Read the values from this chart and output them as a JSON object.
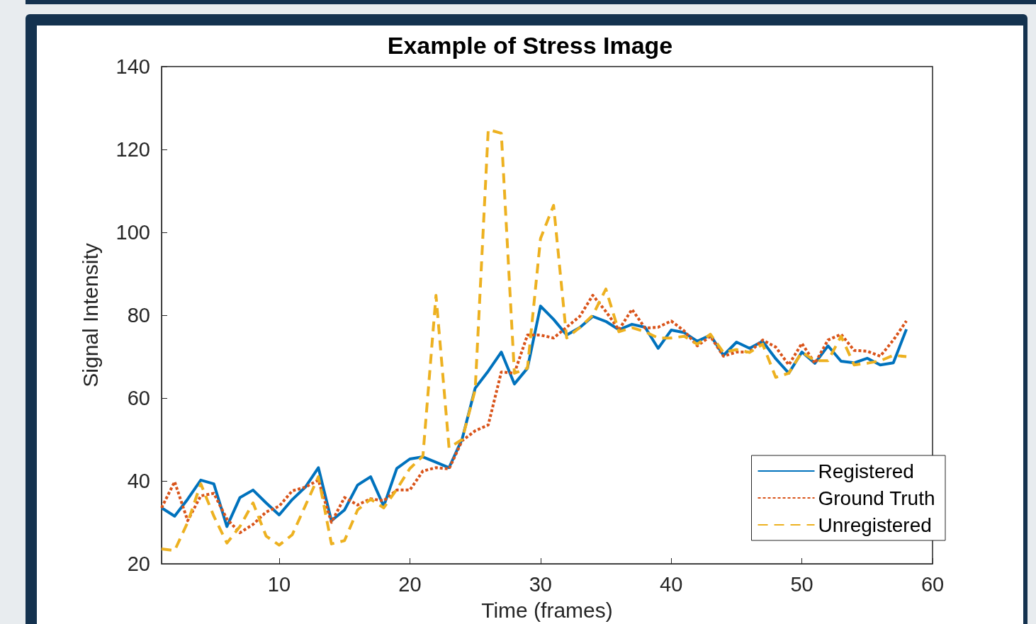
{
  "chart_data": {
    "type": "line",
    "title": "Example of Stress Image",
    "xlabel": "Time (frames)",
    "ylabel": "Signal Intensity",
    "x": [
      1,
      2,
      3,
      4,
      5,
      6,
      7,
      8,
      9,
      10,
      11,
      12,
      13,
      14,
      15,
      16,
      17,
      18,
      19,
      20,
      21,
      22,
      23,
      24,
      25,
      26,
      27,
      28,
      29,
      30,
      31,
      32,
      33,
      34,
      35,
      36,
      37,
      38,
      39,
      40,
      41,
      42,
      43,
      44,
      45,
      46,
      47,
      48,
      49,
      50,
      51,
      52,
      53,
      54,
      55,
      56,
      57,
      58
    ],
    "series": [
      {
        "name": "Registered",
        "color": "#0072bd",
        "line_style": "solid",
        "values": [
          33.5,
          31.5,
          35.6,
          40.2,
          39.3,
          29,
          36,
          37.8,
          34.7,
          31.8,
          35.5,
          38.5,
          43.2,
          30.4,
          33,
          39,
          41,
          33.9,
          43,
          45.3,
          45.8,
          44.5,
          43.2,
          50.1,
          62.4,
          66.5,
          71.1,
          63.4,
          67.2,
          82.2,
          79,
          75.2,
          77,
          79.7,
          78.5,
          76.5,
          77.8,
          77.1,
          72,
          76.4,
          75.8,
          73.7,
          75.2,
          70.3,
          73.5,
          72,
          73.7,
          69.5,
          66,
          71.1,
          68.4,
          72.6,
          68.9,
          68.5,
          69.6,
          68,
          68.5,
          76.6
        ]
      },
      {
        "name": "Ground Truth",
        "color": "#d95319",
        "line_style": "dotted",
        "values": [
          33.5,
          39.8,
          30.4,
          36.4,
          37,
          30.8,
          27.5,
          29.5,
          32.5,
          33.9,
          37.6,
          38.5,
          40.2,
          30,
          36,
          34.2,
          35.7,
          35.2,
          37.8,
          37.8,
          42.4,
          43.2,
          42.9,
          49.7,
          52.1,
          53.5,
          66.3,
          66,
          75.2,
          75.2,
          74.5,
          77.1,
          79.7,
          84.8,
          80.9,
          76.5,
          81.4,
          76.9,
          77.1,
          78.6,
          76.2,
          72.6,
          74.9,
          70.1,
          71.1,
          71.1,
          74,
          72.3,
          68,
          73.2,
          68.4,
          74,
          75.4,
          71.5,
          71.3,
          70.1,
          74,
          78.6
        ]
      },
      {
        "name": "Unregistered",
        "color": "#edb120",
        "line_style": "dashed",
        "values": [
          23.6,
          23.2,
          30,
          39.3,
          31.5,
          25,
          29,
          34.7,
          26.7,
          24.5,
          27,
          34,
          41,
          24.8,
          25.6,
          33,
          35.6,
          33.5,
          38,
          43,
          46,
          84.8,
          48,
          50,
          62,
          124.8,
          123.9,
          66,
          67.2,
          98.5,
          106.5,
          74.5,
          77,
          80,
          86.3,
          76,
          77,
          76,
          74.5,
          74.5,
          74.9,
          73,
          75.4,
          71,
          71.7,
          71,
          73,
          65,
          66,
          71.1,
          69,
          69,
          74.9,
          68,
          68.4,
          69,
          70.3,
          70
        ]
      }
    ],
    "xlim": [
      1,
      60
    ],
    "xticks": [
      10,
      20,
      30,
      40,
      50,
      60
    ],
    "ylim": [
      20,
      140
    ],
    "yticks": [
      20,
      40,
      60,
      80,
      100,
      120,
      140
    ],
    "grid": false,
    "legend": "bottom right",
    "marker": "none"
  }
}
